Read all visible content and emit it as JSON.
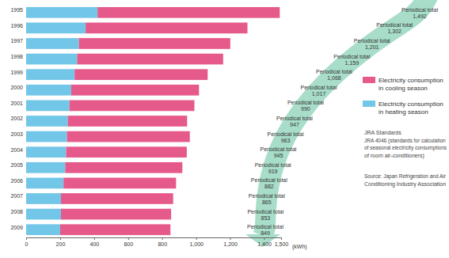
{
  "chart_data": {
    "type": "bar",
    "orientation": "horizontal",
    "stacked": true,
    "grid": false,
    "legend": "right",
    "categories": [
      "1995",
      "1996",
      "1997",
      "1998",
      "1999",
      "2000",
      "2001",
      "2002",
      "2003",
      "2004",
      "2005",
      "2006",
      "2007",
      "2008",
      "2009"
    ],
    "series": [
      {
        "name": "Electricity consumption in heating season",
        "color": "#72c6e8",
        "values": [
          420,
          350,
          310,
          300,
          285,
          265,
          255,
          245,
          240,
          235,
          230,
          220,
          205,
          205,
          200
        ]
      },
      {
        "name": "Electricity consumption in cooling season",
        "color": "#e65a8b",
        "values": [
          1072,
          952,
          891,
          859,
          783,
          752,
          735,
          702,
          723,
          710,
          689,
          662,
          660,
          648,
          649
        ]
      }
    ],
    "totals": {
      "label": "Periodical total",
      "values": [
        1492,
        1302,
        1201,
        1159,
        1068,
        1017,
        990,
        947,
        963,
        945,
        919,
        882,
        865,
        853,
        849
      ],
      "value_labels": [
        "1,492",
        "1,302",
        "1,201",
        "1,159",
        "1,068",
        "1,017",
        "990",
        "947",
        "963",
        "945",
        "919",
        "882",
        "865",
        "853",
        "849"
      ]
    },
    "xlabel": "(kWh)",
    "xlim": [
      0,
      1500
    ],
    "xticks": [
      0,
      200,
      400,
      600,
      800,
      {
        "value": 1000,
        "label": "1,000"
      },
      {
        "value": 1200,
        "label": "1,200"
      },
      {
        "value": 1400,
        "label": "1,400"
      },
      {
        "value": 1500,
        "label": "1,500"
      }
    ],
    "notes": [
      "JRA Standards",
      "JRA 4046 (standards for calculation",
      "of seasonal electricity consumptions",
      "of room air-conditioners)"
    ],
    "source": [
      "Source: Japan Refrigeration and Air",
      "Conditioning Industry Association"
    ]
  }
}
